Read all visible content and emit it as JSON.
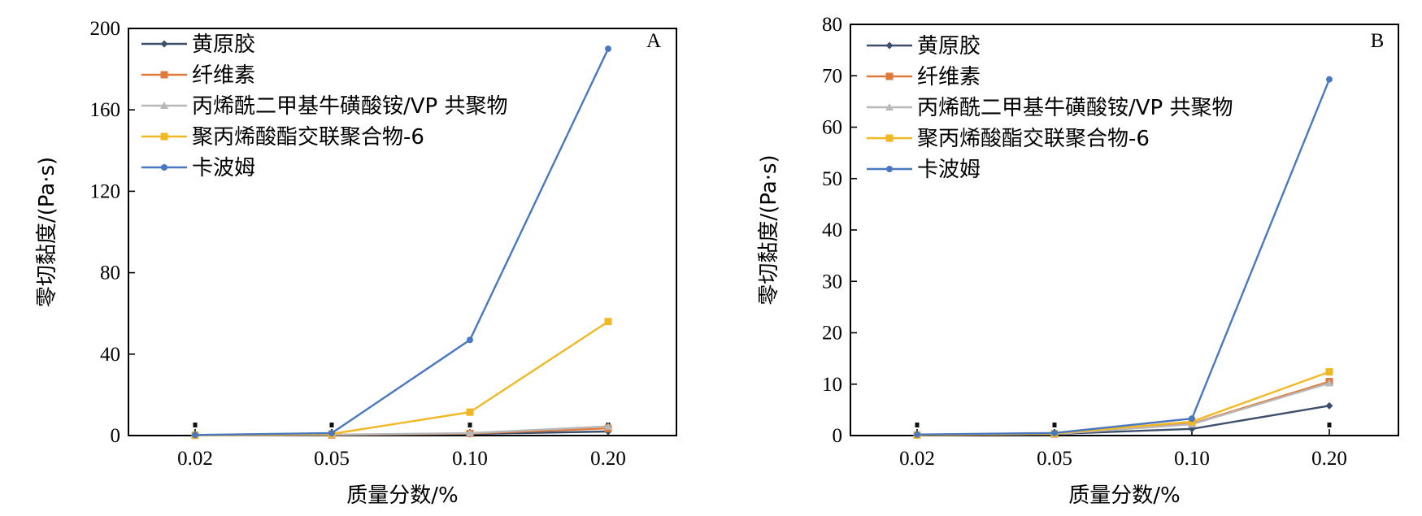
{
  "colors": {
    "xanthan": "#3d4f6b",
    "cellulose": "#e07a3a",
    "ammonium": "#b8b8b8",
    "carbomer6": "#f2b824",
    "carbomer": "#4a78c0"
  },
  "legend": [
    {
      "key": "xanthan",
      "label": "黄原胶",
      "marker": "diamond"
    },
    {
      "key": "cellulose",
      "label": "纤维素",
      "marker": "square"
    },
    {
      "key": "ammonium",
      "label": "丙烯酰二甲基牛磺酸铵/VP 共聚物",
      "marker": "triangle"
    },
    {
      "key": "carbomer6",
      "label": "聚丙烯酸酯交联聚合物-6",
      "marker": "square"
    },
    {
      "key": "carbomer",
      "label": "卡波姆",
      "marker": "circle"
    }
  ],
  "chart_data": [
    {
      "type": "line",
      "panel_label": "A",
      "xlabel": "质量分数/%",
      "ylabel": "零切黏度/(Pa·s)",
      "categories": [
        "0.02",
        "0.05",
        "0.10",
        "0.20"
      ],
      "ylim": [
        0,
        200
      ],
      "yticks": [
        0,
        40,
        80,
        120,
        160,
        200
      ],
      "ytick_labels": [
        "0",
        "40",
        "80",
        "120",
        "160",
        "200"
      ],
      "legend_position": "top-left",
      "series": [
        {
          "key": "xanthan",
          "name": "黄原胶",
          "values": [
            0.1,
            0.3,
            0.8,
            2.0
          ]
        },
        {
          "key": "cellulose",
          "name": "纤维素",
          "values": [
            0.1,
            0.3,
            1.0,
            3.5
          ]
        },
        {
          "key": "ammonium",
          "name": "丙烯酰二甲基牛磺酸铵/VP 共聚物",
          "values": [
            0.1,
            0.4,
            1.2,
            4.5
          ]
        },
        {
          "key": "carbomer6",
          "name": "聚丙烯酸酯交联聚合物-6",
          "values": [
            0.2,
            0.8,
            11.5,
            56
          ]
        },
        {
          "key": "carbomer",
          "name": "卡波姆",
          "values": [
            0.3,
            1.2,
            47,
            190
          ]
        }
      ]
    },
    {
      "type": "line",
      "panel_label": "B",
      "xlabel": "质量分数/%",
      "ylabel": "零切黏度/(Pa·s)",
      "categories": [
        "0.02",
        "0.05",
        "0.10",
        "0.20"
      ],
      "ylim": [
        0,
        80
      ],
      "yticks": [
        0,
        10,
        20,
        30,
        40,
        50,
        60,
        70,
        80
      ],
      "ytick_labels": [
        "0",
        "10",
        "20",
        "30",
        "40",
        "50",
        "60",
        "70",
        "80"
      ],
      "legend_position": "top-left",
      "series": [
        {
          "key": "xanthan",
          "name": "黄原胶",
          "values": [
            0.1,
            0.3,
            1.3,
            5.8
          ]
        },
        {
          "key": "cellulose",
          "name": "纤维素",
          "values": [
            0.1,
            0.3,
            2.3,
            10.5
          ]
        },
        {
          "key": "ammonium",
          "name": "丙烯酰二甲基牛磺酸铵/VP 共聚物",
          "values": [
            0.1,
            0.3,
            2.2,
            10.2
          ]
        },
        {
          "key": "carbomer6",
          "name": "聚丙烯酸酯交联聚合物-6",
          "values": [
            0.1,
            0.4,
            2.7,
            12.4
          ]
        },
        {
          "key": "carbomer",
          "name": "卡波姆",
          "values": [
            0.2,
            0.5,
            3.3,
            69.3
          ]
        }
      ]
    }
  ]
}
